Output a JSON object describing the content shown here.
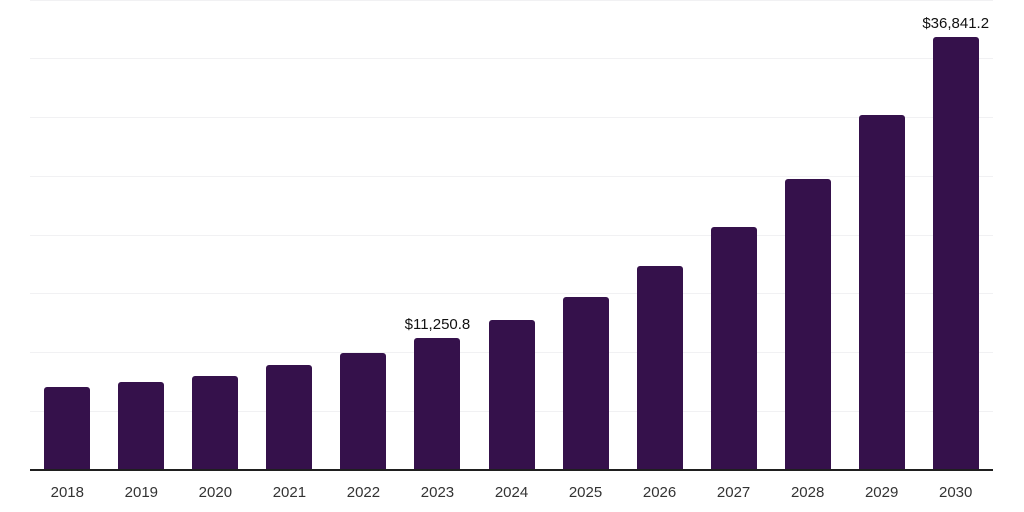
{
  "chart_data": {
    "type": "bar",
    "title": "",
    "xlabel": "",
    "ylabel": "",
    "categories": [
      "2018",
      "2019",
      "2020",
      "2021",
      "2022",
      "2023",
      "2024",
      "2025",
      "2026",
      "2027",
      "2028",
      "2029",
      "2030"
    ],
    "values": [
      7060,
      7460,
      7980,
      8910,
      9930,
      11250.8,
      12770,
      14750,
      17360,
      20650,
      24790,
      30190,
      36841.2
    ],
    "labeled_points": [
      {
        "index": 5,
        "label": "$11,250.8"
      },
      {
        "index": 12,
        "label": "$36,841.2"
      }
    ],
    "ylim": [
      0,
      40000
    ],
    "gridline_step": 5000,
    "grid": "horizontal-only",
    "legend": "none",
    "y_tick_labels_visible": false,
    "colors": {
      "bar": "#35114B",
      "gridline": "#f1f1f3",
      "axis_line": "#1f1f1f",
      "value_label": "#111111",
      "tick_label": "#333333",
      "background": "#ffffff"
    }
  }
}
